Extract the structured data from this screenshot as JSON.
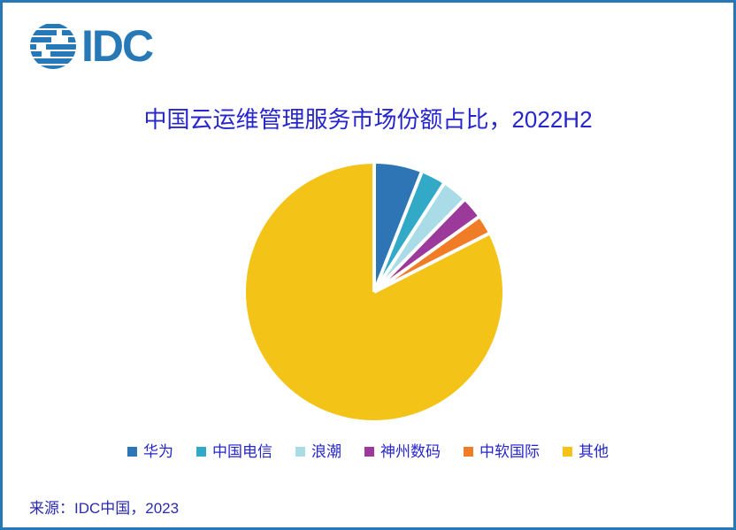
{
  "page": {
    "background": "#FFFFFF",
    "border_color": "#2778B7"
  },
  "logo": {
    "text": "IDC",
    "color": "#2778B7"
  },
  "title": {
    "text": "中国云运维管理服务市场份额占比，2022H2",
    "color": "#2626CC"
  },
  "source": {
    "text": "来源：IDC中国，2023",
    "color": "#2A2AB0"
  },
  "chart_data": {
    "type": "pie",
    "title": "中国云运维管理服务市场份额占比，2022H2",
    "start_angle_deg": 0,
    "direction": "clockwise-from-12-oclock",
    "legend_position": "bottom",
    "values_estimated_from_angles": true,
    "gap_color": "#FFFFFF",
    "series": [
      {
        "label": "华为",
        "value": 6.0,
        "color": "#2E75B6"
      },
      {
        "label": "中国电信",
        "value": 3.1,
        "color": "#32A9C6"
      },
      {
        "label": "浪潮",
        "value": 3.2,
        "color": "#A9DCE6"
      },
      {
        "label": "神州数码",
        "value": 2.8,
        "color": "#9C3A9C"
      },
      {
        "label": "中软国际",
        "value": 2.4,
        "color": "#F07D26"
      },
      {
        "label": "其他",
        "value": 82.5,
        "color": "#F3C317"
      }
    ]
  }
}
